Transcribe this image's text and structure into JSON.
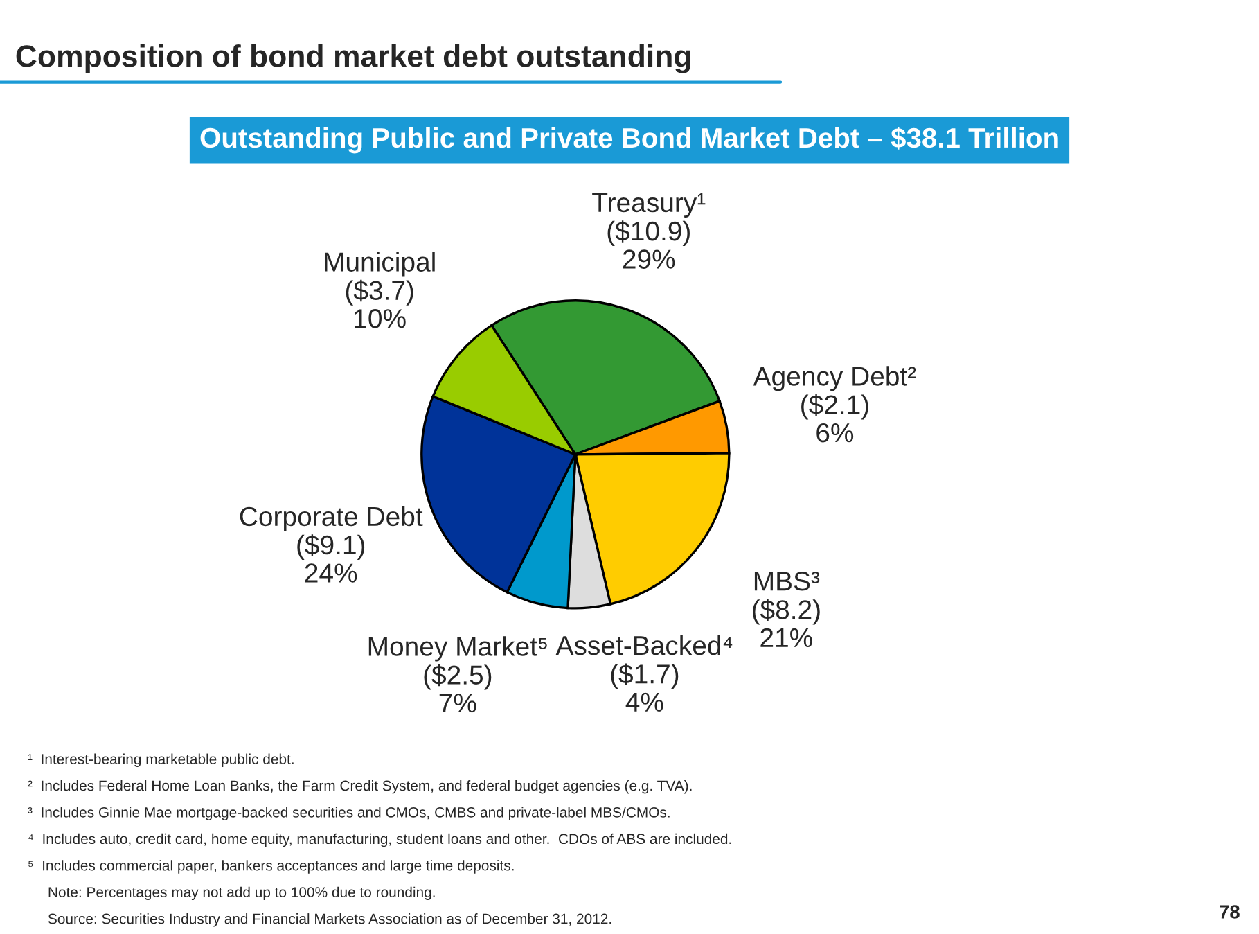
{
  "chart_data": {
    "type": "pie",
    "title": "Composition of bond market debt outstanding",
    "subtitle": "Outstanding Public and Private Bond Market Debt – $38.1 Trillion",
    "categories": [
      "Treasury¹",
      "Agency Debt²",
      "MBS³",
      "Asset-Backed⁴",
      "Money Market⁵",
      "Corporate Debt",
      "Municipal"
    ],
    "values": [
      10.9,
      2.1,
      8.2,
      1.7,
      2.5,
      9.1,
      3.7
    ],
    "value_labels": [
      "($10.9)\n29%",
      "($2.1)\n6%",
      "($8.2)\n21%",
      "($1.7)\n4%",
      "($2.5)\n7%",
      "($9.1)\n24%",
      "($3.7)\n10%"
    ],
    "colors": [
      "#339933",
      "#ff9900",
      "#ffcc00",
      "#dddddd",
      "#0099cc",
      "#003399",
      "#99cc00"
    ],
    "annotations": [
      "¹  Interest-bearing marketable public debt.",
      "²  Includes Federal Home Loan Banks, the Farm Credit System, and federal budget agencies (e.g. TVA).",
      "³  Includes Ginnie Mae mortgage-backed securities and CMOs, CMBS and private-label MBS/CMOs.",
      "⁴  Includes auto, credit card, home equity, manufacturing, student loans and other.  CDOs of ABS are included.",
      "⁵  Includes commercial paper, bankers acceptances and large time deposits.",
      "     Note: Percentages may not add up to 100% due to rounding.",
      "     Source: Securities Industry and Financial Markets Association as of December 31, 2012.",
      "78"
    ]
  }
}
